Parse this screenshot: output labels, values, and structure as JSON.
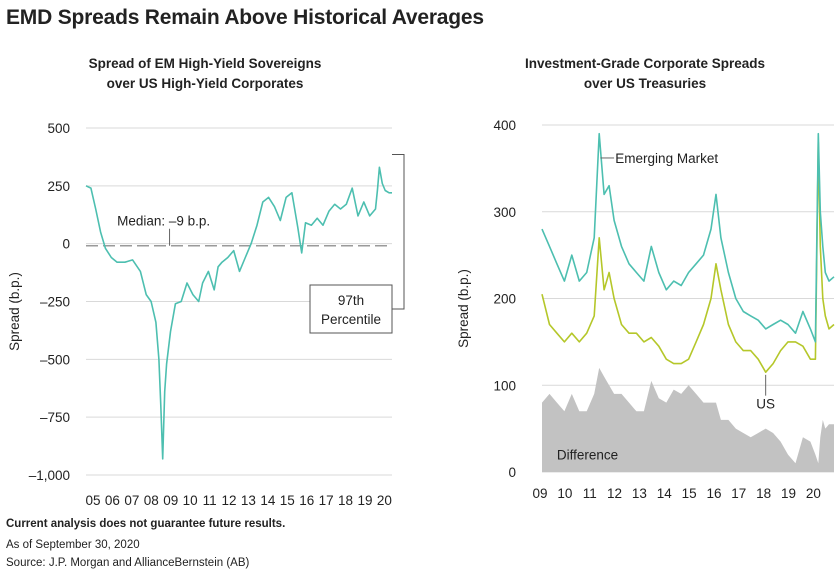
{
  "page": {
    "title": "EMD Spreads Remain Above Historical Averages",
    "disclaimer": "Current analysis does not guarantee future results.",
    "as_of": "As of September 30, 2020",
    "source": "Source: J.P. Morgan and AllianceBernstein (AB)"
  },
  "colors": {
    "teal": "#4dbfb0",
    "lime": "#b5c72a",
    "gray_fill": "#c2c2c2",
    "median_line": "#9a9a9a",
    "grid": "#d9d9d9"
  },
  "chart_data": [
    {
      "type": "line",
      "title": "Spread of EM High-Yield Sovereigns over US High-Yield Corporates",
      "title_lines": [
        "Spread of EM High-Yield Sovereigns",
        "over US High-Yield Corporates"
      ],
      "ylabel": "Spread (b.p.)",
      "xlabel": "",
      "ylim": [
        -1000,
        500
      ],
      "yticks": [
        500,
        250,
        0,
        -250,
        -500,
        -750,
        -1000
      ],
      "ytick_labels": [
        "500",
        "250",
        "0",
        "–250",
        "–500",
        "–750",
        "–1,000"
      ],
      "xlim": [
        2005,
        2020.75
      ],
      "xtick_labels": [
        "05",
        "06",
        "07",
        "08",
        "09",
        "10",
        "11",
        "12",
        "13",
        "14",
        "15",
        "16",
        "17",
        "18",
        "19",
        "20"
      ],
      "grid": true,
      "series": [
        {
          "color": "#4dbfb0",
          "x": [
            2005.0,
            2005.25,
            2005.5,
            2005.75,
            2006.0,
            2006.3,
            2006.6,
            2007.0,
            2007.4,
            2007.8,
            2008.1,
            2008.35,
            2008.6,
            2008.75,
            2008.85,
            2008.95,
            2009.05,
            2009.15,
            2009.35,
            2009.6,
            2009.9,
            2010.2,
            2010.5,
            2010.8,
            2011.0,
            2011.3,
            2011.6,
            2011.8,
            2012.0,
            2012.3,
            2012.6,
            2012.9,
            2013.2,
            2013.5,
            2013.8,
            2014.1,
            2014.4,
            2014.7,
            2015.0,
            2015.3,
            2015.6,
            2015.9,
            2016.1,
            2016.3,
            2016.6,
            2016.9,
            2017.2,
            2017.5,
            2017.8,
            2018.1,
            2018.4,
            2018.7,
            2019.0,
            2019.3,
            2019.6,
            2019.9,
            2020.0,
            2020.1,
            2020.25,
            2020.4,
            2020.6,
            2020.75
          ],
          "y": [
            250,
            240,
            150,
            50,
            -20,
            -60,
            -80,
            -80,
            -70,
            -120,
            -220,
            -250,
            -340,
            -500,
            -700,
            -930,
            -640,
            -520,
            -380,
            -260,
            -250,
            -170,
            -220,
            -250,
            -170,
            -120,
            -200,
            -100,
            -80,
            -60,
            -30,
            -120,
            -60,
            0,
            80,
            180,
            200,
            160,
            100,
            200,
            220,
            70,
            -40,
            90,
            80,
            110,
            80,
            140,
            170,
            150,
            170,
            240,
            120,
            180,
            120,
            150,
            230,
            330,
            260,
            230,
            220,
            220
          ]
        }
      ],
      "annotations": [
        {
          "text": "Median: –9 b.p.",
          "y": -9
        },
        {
          "text_lines": [
            "97th",
            "Percentile"
          ],
          "y": 230
        }
      ]
    },
    {
      "type": "area",
      "title": "Investment-Grade Corporate Spreads over US Treasuries",
      "title_lines": [
        "Investment-Grade Corporate Spreads",
        "over US Treasuries"
      ],
      "ylabel": "Spread (b.p.)",
      "xlabel": "",
      "ylim": [
        0,
        400
      ],
      "yticks": [
        400,
        300,
        200,
        100,
        0
      ],
      "ytick_labels": [
        "400",
        "300",
        "200",
        "100",
        "0"
      ],
      "xlim": [
        2009,
        2020.75
      ],
      "xtick_labels": [
        "09",
        "10",
        "11",
        "12",
        "13",
        "14",
        "15",
        "16",
        "17",
        "18",
        "19",
        "20"
      ],
      "grid": true,
      "x": [
        2009.0,
        2009.3,
        2009.6,
        2009.9,
        2010.2,
        2010.5,
        2010.8,
        2011.1,
        2011.3,
        2011.5,
        2011.7,
        2011.9,
        2012.2,
        2012.5,
        2012.8,
        2013.1,
        2013.4,
        2013.7,
        2014.0,
        2014.3,
        2014.6,
        2014.9,
        2015.2,
        2015.5,
        2015.8,
        2016.0,
        2016.2,
        2016.5,
        2016.8,
        2017.1,
        2017.4,
        2017.7,
        2018.0,
        2018.3,
        2018.6,
        2018.9,
        2019.2,
        2019.5,
        2019.8,
        2020.0,
        2020.12,
        2020.2,
        2020.3,
        2020.4,
        2020.55,
        2020.75
      ],
      "series": [
        {
          "name": "Emerging Market",
          "color": "#4dbfb0",
          "values": [
            280,
            260,
            240,
            220,
            250,
            220,
            230,
            270,
            390,
            320,
            330,
            290,
            260,
            240,
            230,
            220,
            260,
            230,
            210,
            220,
            215,
            230,
            240,
            250,
            280,
            320,
            270,
            230,
            200,
            185,
            180,
            175,
            165,
            170,
            175,
            170,
            160,
            185,
            165,
            150,
            390,
            300,
            260,
            230,
            220,
            225
          ]
        },
        {
          "name": "US",
          "color": "#b5c72a",
          "values": [
            205,
            170,
            160,
            150,
            160,
            150,
            160,
            180,
            270,
            210,
            230,
            200,
            170,
            160,
            160,
            150,
            155,
            145,
            130,
            125,
            125,
            130,
            150,
            170,
            200,
            240,
            210,
            170,
            150,
            140,
            140,
            130,
            115,
            125,
            140,
            150,
            150,
            145,
            130,
            130,
            380,
            260,
            200,
            180,
            165,
            170
          ]
        },
        {
          "name": "Difference",
          "color": "#c2c2c2",
          "values": [
            80,
            90,
            80,
            70,
            90,
            70,
            70,
            90,
            120,
            110,
            100,
            90,
            90,
            80,
            70,
            70,
            105,
            85,
            80,
            95,
            90,
            100,
            90,
            80,
            80,
            80,
            60,
            60,
            50,
            45,
            40,
            45,
            50,
            45,
            35,
            20,
            10,
            40,
            35,
            20,
            10,
            40,
            60,
            50,
            55,
            55
          ]
        }
      ]
    }
  ]
}
